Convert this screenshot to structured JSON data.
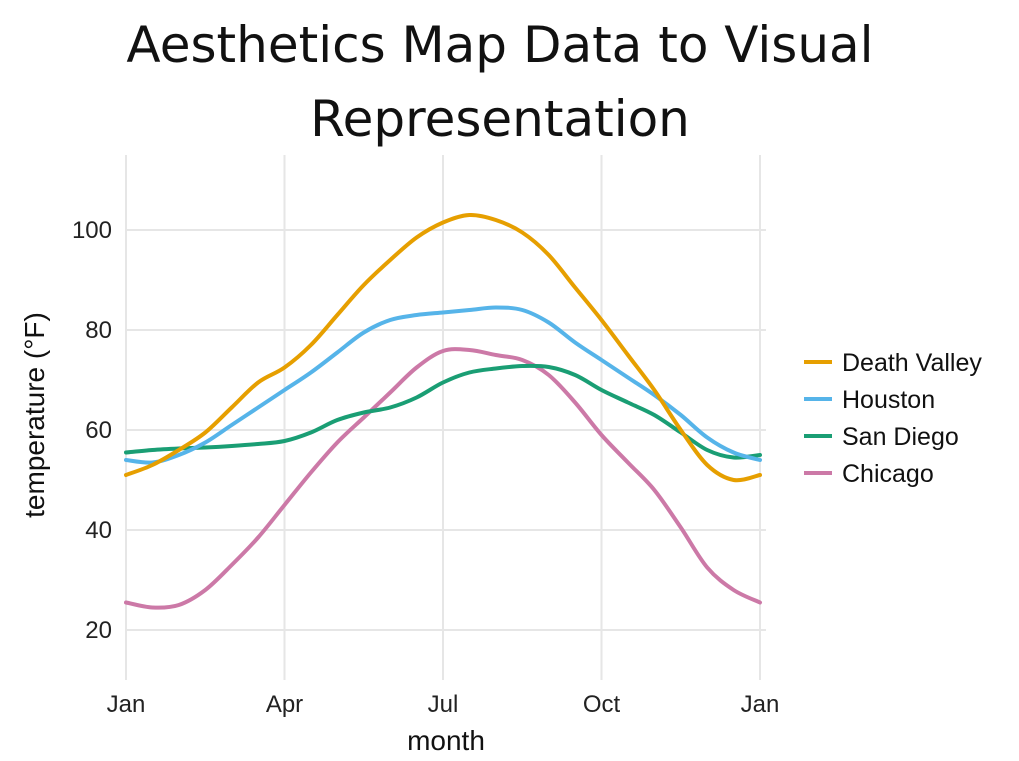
{
  "slide": {
    "title_line1": "Aesthetics Map Data to Visual",
    "title_line2": "Representation"
  },
  "chart_data": {
    "type": "line",
    "xlabel": "month",
    "ylabel": "temperature (°F)",
    "xlim": [
      1,
      13
    ],
    "ylim": [
      10,
      115
    ],
    "x_ticks": [
      {
        "value": 1,
        "label": "Jan"
      },
      {
        "value": 4,
        "label": "Apr"
      },
      {
        "value": 7,
        "label": "Jul"
      },
      {
        "value": 10,
        "label": "Oct"
      },
      {
        "value": 13,
        "label": "Jan"
      }
    ],
    "y_ticks": [
      20,
      40,
      60,
      80,
      100
    ],
    "grid": true,
    "legend_position": "right",
    "series": [
      {
        "name": "Death Valley",
        "color": "#E69F00",
        "points": [
          [
            1,
            51
          ],
          [
            1.5,
            53
          ],
          [
            2,
            56
          ],
          [
            2.5,
            59.5
          ],
          [
            3,
            64.5
          ],
          [
            3.5,
            69.5
          ],
          [
            4,
            72.5
          ],
          [
            4.5,
            77
          ],
          [
            5,
            83
          ],
          [
            5.5,
            89
          ],
          [
            6,
            94
          ],
          [
            6.5,
            98.5
          ],
          [
            7,
            101.5
          ],
          [
            7.5,
            103
          ],
          [
            8,
            102
          ],
          [
            8.5,
            99.5
          ],
          [
            9,
            95
          ],
          [
            9.5,
            88.5
          ],
          [
            10,
            82
          ],
          [
            10.5,
            75
          ],
          [
            11,
            68
          ],
          [
            11.5,
            60
          ],
          [
            12,
            53
          ],
          [
            12.5,
            50
          ],
          [
            13,
            51
          ]
        ]
      },
      {
        "name": "Houston",
        "color": "#56B4E9",
        "points": [
          [
            1,
            54
          ],
          [
            1.5,
            53.5
          ],
          [
            2,
            55
          ],
          [
            2.5,
            57.5
          ],
          [
            3,
            61
          ],
          [
            3.5,
            64.5
          ],
          [
            4,
            68
          ],
          [
            4.5,
            71.5
          ],
          [
            5,
            75.5
          ],
          [
            5.5,
            79.5
          ],
          [
            6,
            82
          ],
          [
            6.5,
            83
          ],
          [
            7,
            83.5
          ],
          [
            7.5,
            84
          ],
          [
            8,
            84.5
          ],
          [
            8.5,
            84
          ],
          [
            9,
            81.5
          ],
          [
            9.5,
            77.5
          ],
          [
            10,
            74
          ],
          [
            10.5,
            70.5
          ],
          [
            11,
            67
          ],
          [
            11.5,
            63
          ],
          [
            12,
            58.5
          ],
          [
            12.5,
            55.5
          ],
          [
            13,
            54
          ]
        ]
      },
      {
        "name": "San Diego",
        "color": "#1A9E74",
        "points": [
          [
            1,
            55.5
          ],
          [
            1.5,
            56
          ],
          [
            2,
            56.3
          ],
          [
            2.5,
            56.5
          ],
          [
            3,
            56.8
          ],
          [
            3.5,
            57.2
          ],
          [
            4,
            57.8
          ],
          [
            4.5,
            59.5
          ],
          [
            5,
            62
          ],
          [
            5.5,
            63.5
          ],
          [
            6,
            64.5
          ],
          [
            6.5,
            66.5
          ],
          [
            7,
            69.5
          ],
          [
            7.5,
            71.5
          ],
          [
            8,
            72.3
          ],
          [
            8.5,
            72.8
          ],
          [
            9,
            72.6
          ],
          [
            9.5,
            71
          ],
          [
            10,
            68
          ],
          [
            10.5,
            65.5
          ],
          [
            11,
            63
          ],
          [
            11.5,
            59.5
          ],
          [
            12,
            56
          ],
          [
            12.5,
            54.5
          ],
          [
            13,
            55
          ]
        ]
      },
      {
        "name": "Chicago",
        "color": "#CC79A7",
        "points": [
          [
            1,
            25.5
          ],
          [
            1.5,
            24.5
          ],
          [
            2,
            25
          ],
          [
            2.5,
            28
          ],
          [
            3,
            33
          ],
          [
            3.5,
            38.5
          ],
          [
            4,
            45
          ],
          [
            4.5,
            51.5
          ],
          [
            5,
            57.5
          ],
          [
            5.5,
            62.5
          ],
          [
            6,
            67.5
          ],
          [
            6.5,
            72.5
          ],
          [
            7,
            75.8
          ],
          [
            7.5,
            76
          ],
          [
            8,
            75
          ],
          [
            8.5,
            74
          ],
          [
            9,
            71
          ],
          [
            9.5,
            65.5
          ],
          [
            10,
            59
          ],
          [
            10.5,
            53.5
          ],
          [
            11,
            48
          ],
          [
            11.5,
            40.5
          ],
          [
            12,
            32.5
          ],
          [
            12.5,
            28
          ],
          [
            13,
            25.5
          ]
        ]
      }
    ]
  }
}
